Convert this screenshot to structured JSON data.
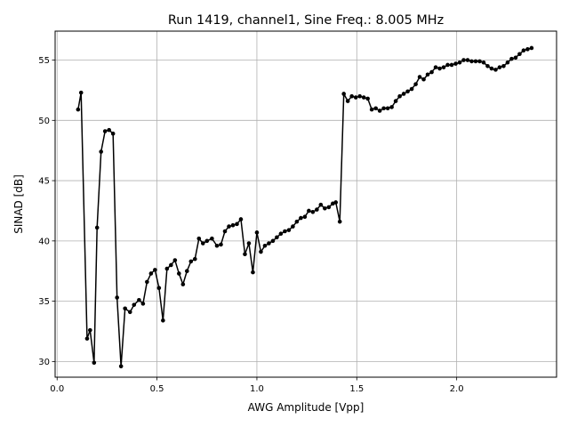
{
  "chart_data": {
    "type": "line",
    "title": "Run 1419, channel1, Sine Freq.: 8.005 MHz",
    "xlabel": "AWG Amplitude [Vpp]",
    "ylabel": "SINAD [dB]",
    "xlim": [
      -0.01,
      2.5
    ],
    "ylim": [
      28.7,
      57.4
    ],
    "xticks": [
      0.0,
      0.5,
      1.0,
      1.5,
      2.0
    ],
    "xtick_labels": [
      "0.0",
      "0.5",
      "1.0",
      "1.5",
      "2.0"
    ],
    "yticks": [
      30,
      35,
      40,
      45,
      50,
      55
    ],
    "ytick_labels": [
      "30",
      "35",
      "40",
      "45",
      "50",
      "55"
    ],
    "grid": true,
    "line_color": "#000000",
    "grid_color": "#b0b0b0",
    "series": [
      {
        "x": [
          0.105,
          0.12,
          0.15,
          0.165,
          0.185,
          0.2,
          0.22,
          0.24,
          0.26,
          0.28,
          0.3,
          0.32,
          0.34,
          0.365,
          0.385,
          0.41,
          0.43,
          0.45,
          0.47,
          0.49,
          0.51,
          0.53,
          0.55,
          0.57,
          0.59,
          0.61,
          0.63,
          0.65,
          0.67,
          0.69,
          0.71,
          0.73,
          0.75,
          0.775,
          0.8,
          0.82,
          0.84,
          0.86,
          0.88,
          0.9,
          0.92,
          0.94,
          0.96,
          0.98,
          1.0,
          1.02,
          1.04,
          1.06,
          1.08,
          1.1,
          1.12,
          1.14,
          1.16,
          1.18,
          1.2,
          1.22,
          1.24,
          1.26,
          1.28,
          1.3,
          1.32,
          1.34,
          1.36,
          1.38,
          1.395,
          1.415,
          1.435,
          1.455,
          1.475,
          1.495,
          1.515,
          1.535,
          1.555,
          1.575,
          1.595,
          1.615,
          1.635,
          1.655,
          1.675,
          1.695,
          1.715,
          1.735,
          1.755,
          1.775,
          1.795,
          1.815,
          1.835,
          1.855,
          1.875,
          1.895,
          1.915,
          1.935,
          1.955,
          1.975,
          1.995,
          2.015,
          2.035,
          2.055,
          2.075,
          2.095,
          2.115,
          2.135,
          2.155,
          2.175,
          2.195,
          2.215,
          2.235,
          2.255,
          2.275,
          2.295,
          2.315,
          2.335,
          2.355,
          2.375
        ],
        "y": [
          50.9,
          52.3,
          31.9,
          32.6,
          29.9,
          41.1,
          47.4,
          49.1,
          49.2,
          48.9,
          35.3,
          29.6,
          34.4,
          34.1,
          34.7,
          35.1,
          34.8,
          36.6,
          37.3,
          37.6,
          36.1,
          33.4,
          37.7,
          38.0,
          38.4,
          37.3,
          36.4,
          37.5,
          38.3,
          38.5,
          40.2,
          39.8,
          40.0,
          40.2,
          39.6,
          39.7,
          40.8,
          41.2,
          41.3,
          41.4,
          41.8,
          38.9,
          39.8,
          37.4,
          40.7,
          39.1,
          39.6,
          39.8,
          40.0,
          40.3,
          40.6,
          40.8,
          40.9,
          41.2,
          41.6,
          41.9,
          42.0,
          42.5,
          42.4,
          42.6,
          43.0,
          42.7,
          42.8,
          43.1,
          43.2,
          41.6,
          52.2,
          51.6,
          52.0,
          51.9,
          52.0,
          51.9,
          51.8,
          50.9,
          51.0,
          50.8,
          51.0,
          51.0,
          51.1,
          51.6,
          52.0,
          52.2,
          52.4,
          52.6,
          53.0,
          53.6,
          53.4,
          53.8,
          54.0,
          54.4,
          54.3,
          54.4,
          54.6,
          54.6,
          54.7,
          54.8,
          55.0,
          55.0,
          54.9,
          54.9,
          54.9,
          54.8,
          54.5,
          54.3,
          54.2,
          54.4,
          54.5,
          54.8,
          55.1,
          55.2,
          55.5,
          55.8,
          55.9,
          56.0
        ]
      }
    ]
  }
}
